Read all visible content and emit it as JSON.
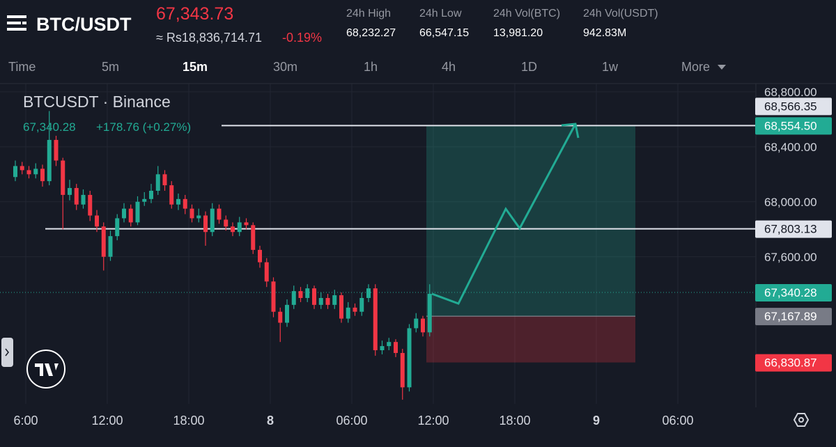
{
  "header": {
    "symbol": "BTC/USDT",
    "price": "67,343.73",
    "fiat": "≈ Rs18,836,714.71",
    "change": "-0.19%",
    "stats": [
      {
        "label": "24h High",
        "value": "68,232.27"
      },
      {
        "label": "24h Low",
        "value": "66,547.15"
      },
      {
        "label": "24h Vol(BTC)",
        "value": "13,981.20"
      },
      {
        "label": "24h Vol(USDT)",
        "value": "942.83M"
      }
    ]
  },
  "timeframes": {
    "items": [
      "Time",
      "5m",
      "15m",
      "30m",
      "1h",
      "4h",
      "1D",
      "1w",
      "More"
    ],
    "active": 2
  },
  "chart_data": {
    "type": "candlestick",
    "title": "BTCUSDT · Binance",
    "legend_price": "67,340.28",
    "legend_change": "+178.76 (+0.27%)",
    "ylim": [
      66530,
      68860
    ],
    "yticks": [
      {
        "value": 68800,
        "label": "68,800.00"
      },
      {
        "value": 68400,
        "label": "68,400.00"
      },
      {
        "value": 68000,
        "label": "68,000.00"
      },
      {
        "value": 67600,
        "label": "67,600.00"
      }
    ],
    "xtick_labels": [
      "6:00",
      "12:00",
      "18:00",
      "8",
      "06:00",
      "12:00",
      "18:00",
      "9",
      "06:00"
    ],
    "up_color": "#22ab94",
    "down_color": "#f23645",
    "grid": true,
    "open": [
      68180,
      68260,
      68230,
      68200,
      68240,
      68150,
      68450,
      68300,
      68050,
      68100,
      67980,
      68050,
      67900,
      67820,
      67600,
      67750,
      67880,
      67950,
      67850,
      68000,
      68020,
      68080,
      68200,
      68120,
      67980,
      68020,
      67950,
      67880,
      67900,
      67780,
      67950,
      67870,
      67820,
      67780,
      67850,
      67830,
      67650,
      67560,
      67420,
      67200,
      67120,
      67250,
      67350,
      67300,
      67370,
      67250,
      67300,
      67250,
      67320,
      67150,
      67230,
      67200,
      67300,
      67370,
      66920,
      66950,
      66980,
      66900,
      66650,
      67080,
      67150,
      67050
    ],
    "high": [
      68300,
      68290,
      68260,
      68280,
      68270,
      68660,
      68480,
      68320,
      68160,
      68130,
      68090,
      68080,
      67940,
      67850,
      67790,
      67910,
      67990,
      67980,
      68040,
      68070,
      68130,
      68260,
      68230,
      68150,
      68060,
      68050,
      67980,
      67950,
      67930,
      67990,
      67980,
      67900,
      67850,
      67890,
      67880,
      67850,
      67680,
      67590,
      67450,
      67230,
      67290,
      67390,
      67380,
      67400,
      67390,
      67340,
      67330,
      67360,
      67340,
      67270,
      67260,
      67340,
      67400,
      67400,
      66990,
      67010,
      67000,
      66930,
      67110,
      67190,
      67170,
      67400
    ],
    "low": [
      68150,
      68200,
      68170,
      68170,
      68110,
      68120,
      68260,
      67800,
      68010,
      67940,
      67950,
      67860,
      67780,
      67500,
      67570,
      67720,
      67850,
      67820,
      67830,
      67970,
      67990,
      68050,
      68080,
      67950,
      67940,
      67910,
      67850,
      67850,
      67680,
      67750,
      67840,
      67790,
      67750,
      67750,
      67800,
      67620,
      67520,
      67380,
      67160,
      66980,
      67090,
      67220,
      67270,
      67270,
      67220,
      67220,
      67220,
      67220,
      67120,
      67120,
      67170,
      67170,
      67270,
      66880,
      66890,
      66920,
      66870,
      66560,
      66620,
      67050,
      67020,
      67020
    ],
    "close": [
      68260,
      68230,
      68200,
      68240,
      68150,
      68450,
      68300,
      68050,
      68100,
      67980,
      68050,
      67900,
      67820,
      67600,
      67750,
      67880,
      67950,
      67850,
      68000,
      68020,
      68080,
      68200,
      68120,
      67980,
      68020,
      67950,
      67880,
      67900,
      67780,
      67950,
      67870,
      67820,
      67780,
      67850,
      67830,
      67650,
      67560,
      67420,
      67200,
      67120,
      67250,
      67350,
      67300,
      67370,
      67250,
      67300,
      67250,
      67320,
      67150,
      67230,
      67200,
      67300,
      67370,
      66920,
      66950,
      66980,
      66900,
      66650,
      67080,
      67150,
      67050,
      67330
    ],
    "price_labels": [
      {
        "value": 68566.35,
        "label": "68,566.35",
        "style": "light"
      },
      {
        "value": 68554.5,
        "label": "68,554.50",
        "style": "green"
      },
      {
        "value": 67803.13,
        "label": "67,803.13",
        "style": "light"
      },
      {
        "value": 67340.28,
        "label": "67,340.28",
        "style": "green"
      },
      {
        "value": 67167.89,
        "label": "67,167.89",
        "style": "gray"
      },
      {
        "value": 66830.87,
        "label": "66,830.87",
        "style": "red"
      }
    ]
  }
}
